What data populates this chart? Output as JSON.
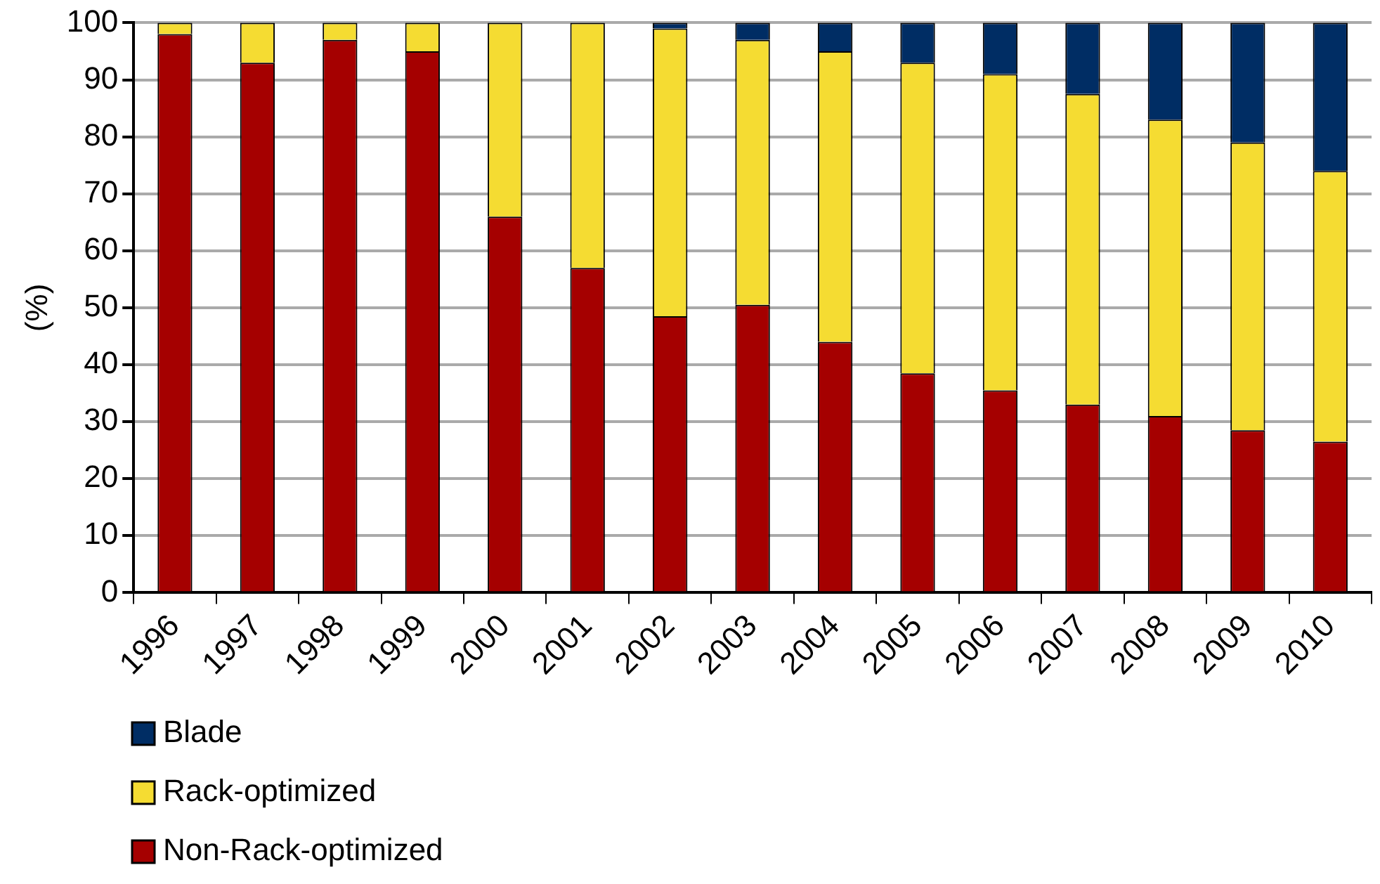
{
  "chart_data": {
    "type": "bar",
    "stacked": true,
    "ylabel": "(%)",
    "categories": [
      "1996",
      "1997",
      "1998",
      "1999",
      "2000",
      "2001",
      "2002",
      "2003",
      "2004",
      "2005",
      "2006",
      "2007",
      "2008",
      "2009",
      "2010"
    ],
    "series": [
      {
        "name": "Non-Rack-optimized",
        "color": "#a50000",
        "values": [
          98,
          93,
          97,
          95,
          66,
          57,
          48.5,
          50.5,
          44,
          38.5,
          35.5,
          33,
          31,
          28.5,
          26.5
        ]
      },
      {
        "name": "Rack-optimized",
        "color": "#f5dc32",
        "values": [
          2,
          7,
          3,
          5,
          34,
          43,
          50.5,
          46.5,
          51,
          54.5,
          55.5,
          54.5,
          52,
          50.5,
          47.5
        ]
      },
      {
        "name": "Blade",
        "color": "#002d64",
        "values": [
          0,
          0,
          0,
          0,
          0,
          0,
          1,
          3,
          5,
          7,
          9,
          12.5,
          17,
          21,
          26
        ]
      }
    ],
    "ylim": [
      0,
      100
    ],
    "yticks": [
      0,
      10,
      20,
      30,
      40,
      50,
      60,
      70,
      80,
      90,
      100
    ],
    "grid": "y",
    "legend": "bottom left"
  }
}
